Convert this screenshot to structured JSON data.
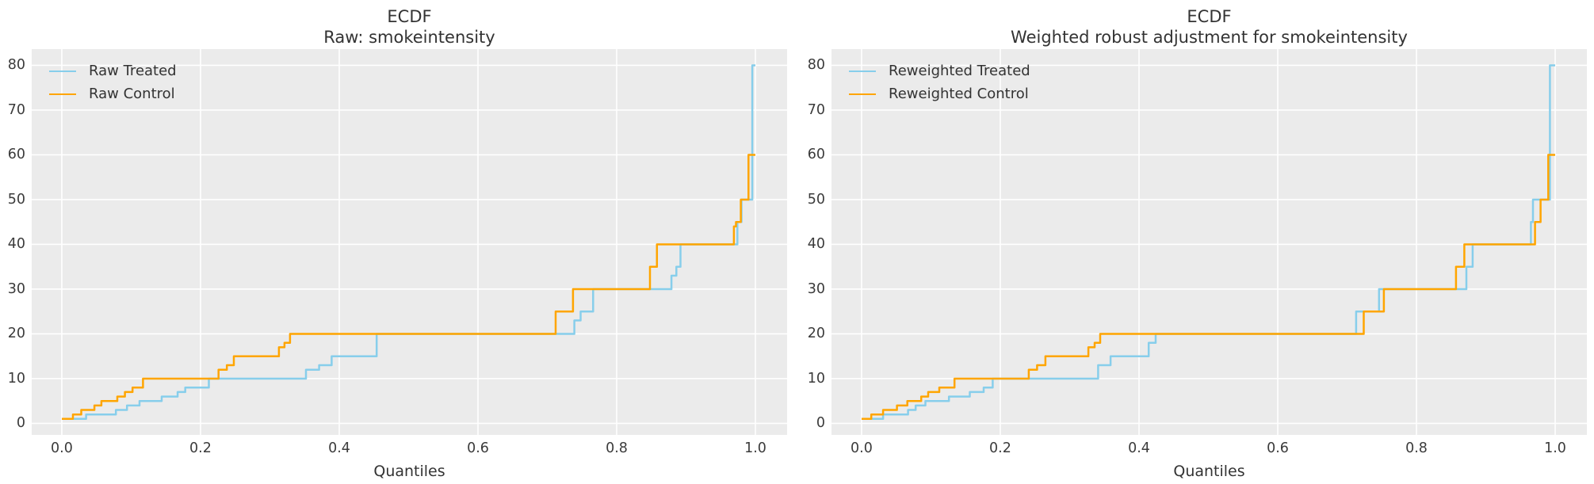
{
  "figure": {
    "background": "#ffffff",
    "axes_background": "#ebebeb",
    "grid_color": "#ffffff",
    "title_color": "#333333",
    "tick_color": "#3b3b3b"
  },
  "chart_data": [
    {
      "type": "line",
      "line_style": "step-ecdf",
      "title": "ECDF",
      "subtitle": "Raw: smokeintensity",
      "xlabel": "Quantiles",
      "grid": true,
      "legend_position": "upper left",
      "x_ticks": [
        "0.0",
        "0.2",
        "0.4",
        "0.6",
        "0.8",
        "1.0"
      ],
      "x_tick_values": [
        0,
        0.2,
        0.4,
        0.6,
        0.8,
        1.0
      ],
      "y_ticks": [
        "0",
        "10",
        "20",
        "30",
        "40",
        "50",
        "60",
        "70",
        "80"
      ],
      "y_tick_values": [
        0,
        10,
        20,
        30,
        40,
        50,
        60,
        70,
        80
      ],
      "xlim": [
        -0.0434,
        1.0457
      ],
      "ylim": [
        -2.57,
        83.62
      ],
      "series": [
        {
          "name": "Raw Treated",
          "color": "#87CEEB",
          "points": [
            [
              0.01,
              1
            ],
            [
              0.035,
              2
            ],
            [
              0.078,
              3
            ],
            [
              0.094,
              4
            ],
            [
              0.112,
              5
            ],
            [
              0.144,
              6
            ],
            [
              0.167,
              7
            ],
            [
              0.178,
              8
            ],
            [
              0.212,
              10
            ],
            [
              0.352,
              12
            ],
            [
              0.371,
              13
            ],
            [
              0.389,
              15
            ],
            [
              0.454,
              20
            ],
            [
              0.739,
              23
            ],
            [
              0.748,
              25
            ],
            [
              0.766,
              30
            ],
            [
              0.879,
              33
            ],
            [
              0.886,
              35
            ],
            [
              0.892,
              40
            ],
            [
              0.974,
              45
            ],
            [
              0.98,
              50
            ],
            [
              0.9955,
              80
            ],
            [
              1.0,
              80
            ]
          ]
        },
        {
          "name": "Raw Control",
          "color": "#FFA500",
          "points": [
            [
              0.0,
              1
            ],
            [
              0.016,
              2
            ],
            [
              0.028,
              3
            ],
            [
              0.047,
              4
            ],
            [
              0.057,
              5
            ],
            [
              0.08,
              6
            ],
            [
              0.091,
              7
            ],
            [
              0.102,
              8
            ],
            [
              0.117,
              10
            ],
            [
              0.226,
              12
            ],
            [
              0.238,
              13
            ],
            [
              0.248,
              15
            ],
            [
              0.313,
              17
            ],
            [
              0.321,
              18
            ],
            [
              0.329,
              20
            ],
            [
              0.712,
              25
            ],
            [
              0.737,
              30
            ],
            [
              0.848,
              35
            ],
            [
              0.858,
              40
            ],
            [
              0.969,
              44
            ],
            [
              0.972,
              45
            ],
            [
              0.979,
              50
            ],
            [
              0.99,
              60
            ],
            [
              1.0,
              60
            ]
          ]
        }
      ]
    },
    {
      "type": "line",
      "line_style": "step-ecdf",
      "title": "ECDF",
      "subtitle": "Weighted robust adjustment for smokeintensity",
      "xlabel": "Quantiles",
      "grid": true,
      "legend_position": "upper left",
      "x_ticks": [
        "0.0",
        "0.2",
        "0.4",
        "0.6",
        "0.8",
        "1.0"
      ],
      "x_tick_values": [
        0,
        0.2,
        0.4,
        0.6,
        0.8,
        1.0
      ],
      "y_ticks": [
        "0",
        "10",
        "20",
        "30",
        "40",
        "50",
        "60",
        "70",
        "80"
      ],
      "y_tick_values": [
        0,
        10,
        20,
        30,
        40,
        50,
        60,
        70,
        80
      ],
      "xlim": [
        -0.0434,
        1.0457
      ],
      "ylim": [
        -2.57,
        83.62
      ],
      "series": [
        {
          "name": "Reweighted Treated",
          "color": "#87CEEB",
          "points": [
            [
              0.01,
              1
            ],
            [
              0.031,
              2
            ],
            [
              0.067,
              3
            ],
            [
              0.078,
              4
            ],
            [
              0.092,
              5
            ],
            [
              0.126,
              6
            ],
            [
              0.156,
              7
            ],
            [
              0.176,
              8
            ],
            [
              0.189,
              10
            ],
            [
              0.341,
              13
            ],
            [
              0.359,
              15
            ],
            [
              0.414,
              18
            ],
            [
              0.424,
              20
            ],
            [
              0.713,
              25
            ],
            [
              0.746,
              30
            ],
            [
              0.872,
              35
            ],
            [
              0.881,
              40
            ],
            [
              0.965,
              45
            ],
            [
              0.968,
              50
            ],
            [
              0.9925,
              80
            ],
            [
              1.0,
              80
            ]
          ]
        },
        {
          "name": "Reweighted Control",
          "color": "#FFA500",
          "points": [
            [
              0.0,
              1
            ],
            [
              0.014,
              2
            ],
            [
              0.031,
              3
            ],
            [
              0.051,
              4
            ],
            [
              0.066,
              5
            ],
            [
              0.086,
              6
            ],
            [
              0.096,
              7
            ],
            [
              0.112,
              8
            ],
            [
              0.134,
              10
            ],
            [
              0.241,
              12
            ],
            [
              0.253,
              13
            ],
            [
              0.265,
              15
            ],
            [
              0.327,
              17
            ],
            [
              0.336,
              18
            ],
            [
              0.344,
              20
            ],
            [
              0.724,
              25
            ],
            [
              0.753,
              30
            ],
            [
              0.857,
              35
            ],
            [
              0.869,
              40
            ],
            [
              0.971,
              45
            ],
            [
              0.979,
              50
            ],
            [
              0.99,
              60
            ],
            [
              1.0,
              60
            ]
          ]
        }
      ]
    }
  ]
}
